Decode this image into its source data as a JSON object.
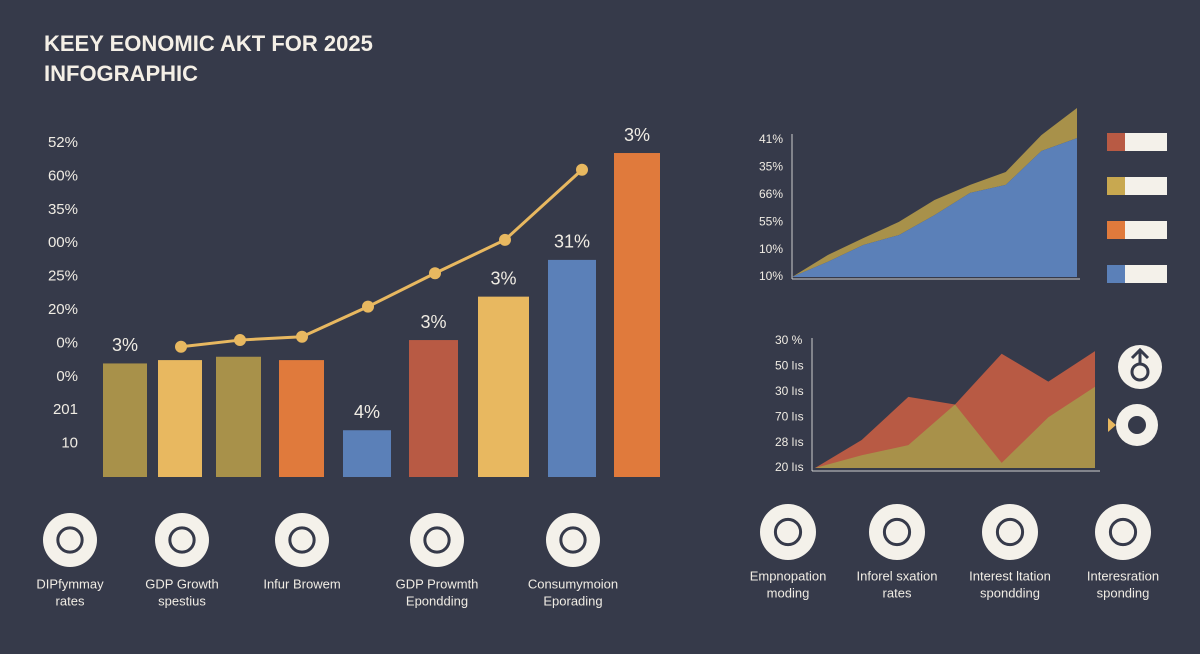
{
  "title_lines": [
    "KEEY EONOMIC AKT FOR 2025",
    "INFOGRAPHIC"
  ],
  "main_chart": {
    "yticks": [
      {
        "value": 1,
        "label": "10"
      },
      {
        "value": 2,
        "label": "201"
      },
      {
        "value": 3,
        "label": "0%"
      },
      {
        "value": 4,
        "label": "0%"
      },
      {
        "value": 5,
        "label": "20%"
      },
      {
        "value": 6,
        "label": "25%"
      },
      {
        "value": 7,
        "label": "00%"
      },
      {
        "value": 8,
        "label": "35%"
      },
      {
        "value": 9,
        "label": "60%"
      },
      {
        "value": 10,
        "label": "52%"
      }
    ],
    "bars": [
      {
        "value": 3.4,
        "color": "#a8914a",
        "label": "3%"
      },
      {
        "value": 3.5,
        "color": "#e8b860"
      },
      {
        "value": 3.6,
        "color": "#a8914a"
      },
      {
        "value": 3.5,
        "color": "#e07a3c"
      },
      {
        "value": 1.4,
        "color": "#5b80b8",
        "label": "4%"
      },
      {
        "value": 4.1,
        "color": "#b85a44",
        "label": "3%"
      },
      {
        "value": 5.4,
        "color": "#e8b860",
        "label": "3%"
      },
      {
        "value": 6.5,
        "color": "#5b80b8",
        "label": "31%"
      },
      {
        "value": 9.7,
        "color": "#e07a3c",
        "label": "3%"
      }
    ],
    "line": {
      "color": "#e8b860",
      "values": [
        3.9,
        4.1,
        4.2,
        5.1,
        6.1,
        7.1,
        9.2
      ]
    }
  },
  "area_chart": {
    "yticks": [
      {
        "value": 0,
        "label": "10%"
      },
      {
        "value": 1,
        "label": "10%"
      },
      {
        "value": 2,
        "label": "55%"
      },
      {
        "value": 3,
        "label": "66%"
      },
      {
        "value": 4,
        "label": "35%"
      },
      {
        "value": 5,
        "label": "41%"
      }
    ],
    "series": [
      {
        "color": "#5b80b8",
        "values": [
          0,
          0.55,
          1.17,
          1.53,
          2.26,
          3.07,
          3.36,
          4.6,
          5.07
        ]
      },
      {
        "color": "#a8914a",
        "values": [
          0,
          0.25,
          0.25,
          0.48,
          0.55,
          0.29,
          0.47,
          0.58,
          1.1
        ]
      }
    ],
    "legend_colors": [
      "#b85a44",
      "#c8a850",
      "#e07a3c",
      "#5b80b8"
    ]
  },
  "mountain_chart": {
    "yticks": [
      {
        "value": 0,
        "label": "20 lıs"
      },
      {
        "value": 1,
        "label": "28 lıs"
      },
      {
        "value": 2,
        "label": "70 lıs"
      },
      {
        "value": 3,
        "label": "30 lıs"
      },
      {
        "value": 4,
        "label": "50 lıs"
      },
      {
        "value": 5,
        "label": "30 %"
      }
    ],
    "series": [
      {
        "color": "#b85a44",
        "values": [
          0,
          1.1,
          2.8,
          2.5,
          4.5,
          3.4,
          4.6
        ]
      },
      {
        "color": "#a8914a",
        "values": [
          0,
          0.5,
          0.9,
          2.5,
          0.2,
          2.0,
          3.2
        ]
      }
    ]
  },
  "icons_left": [
    {
      "lines": [
        "DIPfymmay",
        "rates"
      ]
    },
    {
      "lines": [
        "GDP Growth",
        "spestius"
      ]
    },
    {
      "lines": [
        "Infur Browem"
      ]
    },
    {
      "lines": [
        "GDP Prowmth",
        "Epondding"
      ]
    },
    {
      "lines": [
        "Consumymoion",
        "Eporading"
      ]
    }
  ],
  "icons_right": [
    {
      "lines": [
        "Empnopation",
        "moding"
      ]
    },
    {
      "lines": [
        "Inforel sxation",
        "rates"
      ]
    },
    {
      "lines": [
        "Interest ltation",
        "spondding"
      ]
    },
    {
      "lines": [
        "Interesration",
        "sponding"
      ]
    }
  ]
}
